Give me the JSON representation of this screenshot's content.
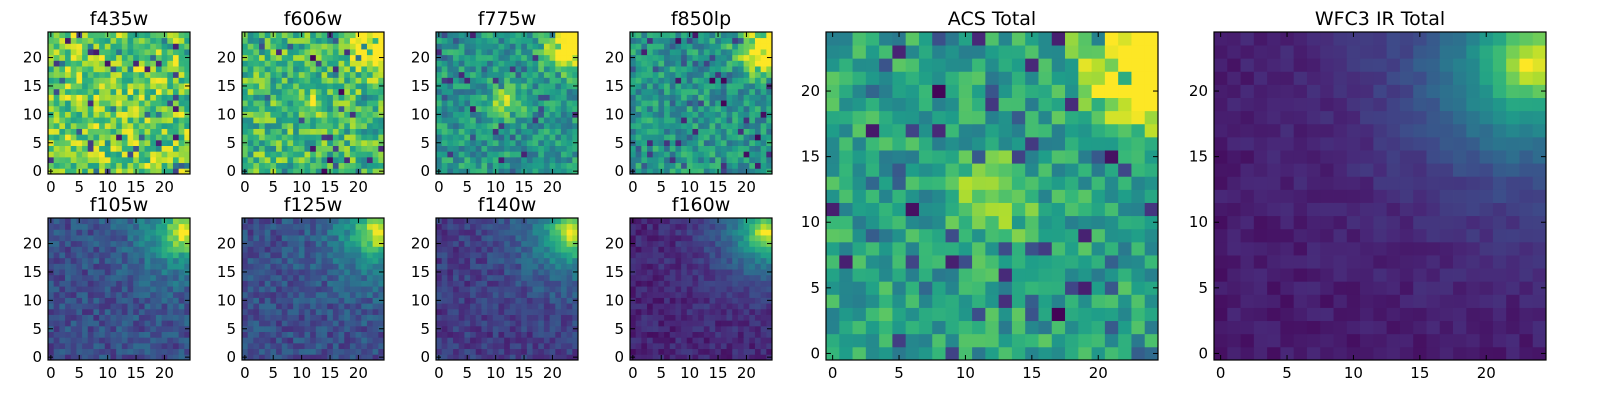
{
  "chart_data": [
    {
      "type": "heatmap",
      "title": "f435w",
      "grid": [
        25,
        25
      ],
      "colormap": "viridis",
      "style": "noise",
      "xticks": [
        "0",
        "5",
        "10",
        "15",
        "20"
      ],
      "yticks": [
        "0",
        "5",
        "10",
        "15",
        "20"
      ],
      "xlim": [
        0,
        24
      ],
      "ylim": [
        0,
        24
      ]
    },
    {
      "type": "heatmap",
      "title": "f606w",
      "grid": [
        25,
        25
      ],
      "colormap": "viridis",
      "style": "noise-bright-corner",
      "xticks": [
        "0",
        "5",
        "10",
        "15",
        "20"
      ],
      "yticks": [
        "0",
        "5",
        "10",
        "15",
        "20"
      ],
      "xlim": [
        0,
        24
      ],
      "ylim": [
        0,
        24
      ]
    },
    {
      "type": "heatmap",
      "title": "f775w",
      "grid": [
        25,
        25
      ],
      "colormap": "viridis",
      "style": "noise-corner-source",
      "xticks": [
        "0",
        "5",
        "10",
        "15",
        "20"
      ],
      "yticks": [
        "0",
        "5",
        "10",
        "15",
        "20"
      ],
      "xlim": [
        0,
        24
      ],
      "ylim": [
        0,
        24
      ]
    },
    {
      "type": "heatmap",
      "title": "f850lp",
      "grid": [
        25,
        25
      ],
      "colormap": "viridis",
      "style": "noise-corner",
      "xticks": [
        "0",
        "5",
        "10",
        "15",
        "20"
      ],
      "yticks": [
        "0",
        "5",
        "10",
        "15",
        "20"
      ],
      "xlim": [
        0,
        24
      ],
      "ylim": [
        0,
        24
      ]
    },
    {
      "type": "heatmap",
      "title": "f105w",
      "grid": [
        25,
        25
      ],
      "colormap": "viridis",
      "style": "ir-corner",
      "xticks": [
        "0",
        "5",
        "10",
        "15",
        "20"
      ],
      "yticks": [
        "0",
        "5",
        "10",
        "15",
        "20"
      ],
      "xlim": [
        0,
        24
      ],
      "ylim": [
        0,
        24
      ]
    },
    {
      "type": "heatmap",
      "title": "f125w",
      "grid": [
        25,
        25
      ],
      "colormap": "viridis",
      "style": "ir-corner",
      "xticks": [
        "0",
        "5",
        "10",
        "15",
        "20"
      ],
      "yticks": [
        "0",
        "5",
        "10",
        "15",
        "20"
      ],
      "xlim": [
        0,
        24
      ],
      "ylim": [
        0,
        24
      ]
    },
    {
      "type": "heatmap",
      "title": "f140w",
      "grid": [
        25,
        25
      ],
      "colormap": "viridis",
      "style": "ir-corner-dark",
      "xticks": [
        "0",
        "5",
        "10",
        "15",
        "20"
      ],
      "yticks": [
        "0",
        "5",
        "10",
        "15",
        "20"
      ],
      "xlim": [
        0,
        24
      ],
      "ylim": [
        0,
        24
      ]
    },
    {
      "type": "heatmap",
      "title": "f160w",
      "grid": [
        25,
        25
      ],
      "colormap": "viridis",
      "style": "ir-corner-darker",
      "xticks": [
        "0",
        "5",
        "10",
        "15",
        "20"
      ],
      "yticks": [
        "0",
        "5",
        "10",
        "15",
        "20"
      ],
      "xlim": [
        0,
        24
      ],
      "ylim": [
        0,
        24
      ]
    },
    {
      "type": "heatmap",
      "title": "ACS Total",
      "grid": [
        25,
        25
      ],
      "colormap": "viridis",
      "style": "acs-total",
      "xticks": [
        "0",
        "5",
        "10",
        "15",
        "20"
      ],
      "yticks": [
        "0",
        "5",
        "10",
        "15",
        "20"
      ],
      "xlim": [
        0,
        24
      ],
      "ylim": [
        0,
        24
      ]
    },
    {
      "type": "heatmap",
      "title": "WFC3 IR Total",
      "grid": [
        25,
        25
      ],
      "colormap": "viridis",
      "style": "ir-total",
      "xticks": [
        "0",
        "5",
        "10",
        "15",
        "20"
      ],
      "yticks": [
        "0",
        "5",
        "10",
        "15",
        "20"
      ],
      "xlim": [
        0,
        24
      ],
      "ylim": [
        0,
        24
      ]
    }
  ]
}
